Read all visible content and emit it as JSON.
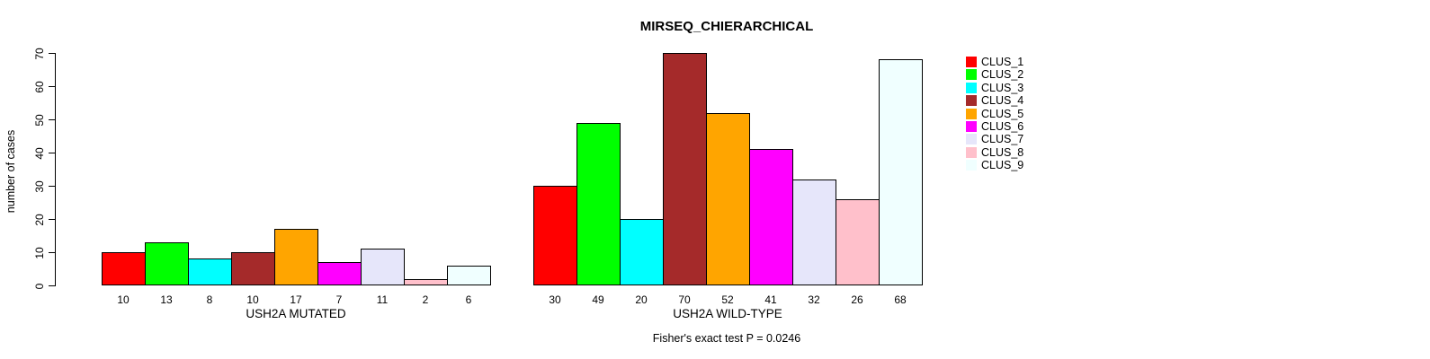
{
  "title": "MIRSEQ_CHIERARCHICAL",
  "footer": "Fisher's exact test P = 0.0246",
  "chart_data": {
    "type": "bar",
    "title": "MIRSEQ_CHIERARCHICAL",
    "xlabel": "",
    "ylabel": "number of cases",
    "ylim": [
      0,
      70
    ],
    "yticks": [
      0,
      10,
      20,
      30,
      40,
      50,
      60,
      70
    ],
    "grid": false,
    "legend_position": "right",
    "legend": [
      "CLUS_1",
      "CLUS_2",
      "CLUS_3",
      "CLUS_4",
      "CLUS_5",
      "CLUS_6",
      "CLUS_7",
      "CLUS_8",
      "CLUS_9"
    ],
    "series_colors": [
      "#FF0000",
      "#00FF00",
      "#00FFFF",
      "#A52A2A",
      "#FFA500",
      "#FF00FF",
      "#E6E6FA",
      "#FFC0CB",
      "#F0FFFF"
    ],
    "bar_border_color": "#000000",
    "groups": [
      {
        "label": "USH2A MUTATED",
        "values": [
          10,
          13,
          8,
          10,
          17,
          7,
          11,
          2,
          6
        ]
      },
      {
        "label": "USH2A WILD-TYPE",
        "values": [
          30,
          49,
          20,
          70,
          52,
          41,
          32,
          26,
          68
        ]
      }
    ],
    "annotation": "Fisher's exact test P = 0.0246"
  }
}
